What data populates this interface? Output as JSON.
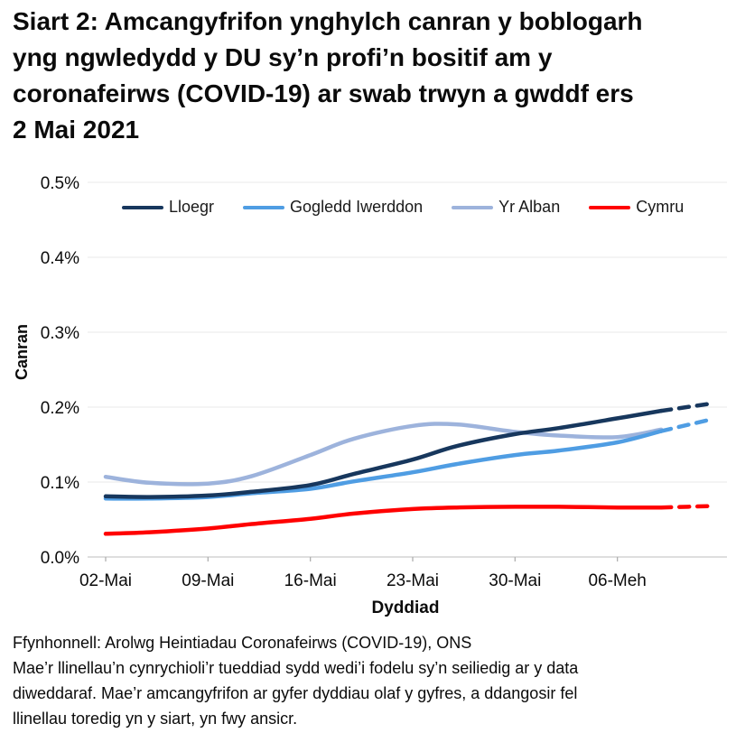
{
  "header": {
    "title_lines": [
      "Siart 2: Amcangyfrifon ynghylch canran y boblogarh",
      "yng ngwledydd y DU sy’n profi’n bositif am y",
      "coronafeirws (COVID-19) ar swab trwyn a gwddf ers",
      "2 Mai 2021"
    ]
  },
  "chart_data": {
    "type": "line",
    "xlabel": "Dyddiad",
    "ylabel": "Canran",
    "ylim": [
      0,
      0.5
    ],
    "grid": true,
    "legend_position": "top-inside",
    "y_tick_labels": [
      "0.0%",
      "0.1%",
      "0.2%",
      "0.3%",
      "0.4%",
      "0.5%"
    ],
    "y_tick_values": [
      0.0,
      0.1,
      0.2,
      0.3,
      0.4,
      0.5
    ],
    "x_tick_labels": [
      "02-Mai",
      "09-Mai",
      "16-Mai",
      "23-Mai",
      "30-Mai",
      "06-Meh"
    ],
    "x_tick_days": [
      0,
      7,
      14,
      21,
      28,
      35
    ],
    "x_dates": [
      "02-Mai",
      "05-Mai",
      "09-Mai",
      "12-Mai",
      "16-Mai",
      "19-Mai",
      "23-Mai",
      "26-Mai",
      "30-Mai",
      "02-Meh",
      "06-Meh",
      "09-Meh"
    ],
    "x_days": [
      0,
      3,
      7,
      10,
      14,
      17,
      21,
      24,
      28,
      31,
      35,
      38
    ],
    "draw_order": [
      2,
      1,
      0,
      3
    ],
    "series": [
      {
        "name": "Lloegr",
        "color": "#17375d",
        "values": [
          0.081,
          0.08,
          0.082,
          0.087,
          0.096,
          0.111,
          0.13,
          0.148,
          0.164,
          0.172,
          0.185,
          0.195
        ],
        "dashed_tail": {
          "days": [
            38,
            41.5
          ],
          "values": [
            0.195,
            0.205
          ]
        }
      },
      {
        "name": "Gogledd Iwerddon",
        "color": "#4f9de3",
        "values": [
          0.078,
          0.078,
          0.08,
          0.085,
          0.091,
          0.101,
          0.113,
          0.124,
          0.136,
          0.142,
          0.153,
          0.168
        ],
        "dashed_tail": {
          "days": [
            38,
            41.5
          ],
          "values": [
            0.168,
            0.184
          ]
        }
      },
      {
        "name": "Yr Alban",
        "color": "#9db3dc",
        "values": [
          0.107,
          0.099,
          0.098,
          0.108,
          0.136,
          0.158,
          0.175,
          0.177,
          0.167,
          0.162,
          0.16,
          0.17
        ],
        "dashed_tail": null
      },
      {
        "name": "Cymru",
        "color": "#ff0000",
        "values": [
          0.031,
          0.033,
          0.038,
          0.044,
          0.051,
          0.058,
          0.064,
          0.066,
          0.067,
          0.067,
          0.066,
          0.066
        ],
        "dashed_tail": {
          "days": [
            38,
            41.5
          ],
          "values": [
            0.066,
            0.068
          ]
        }
      }
    ]
  },
  "footer": {
    "source": "Ffynhonnell: Arolwg Heintiadau Coronafeirws (COVID-19), ONS",
    "note_lines": [
      "Mae’r llinellau’n cynrychioli’r tueddiad sydd wedi’i fodelu sy’n seiliedig ar y data",
      "diweddaraf. Mae’r amcangyfrifon ar gyfer dyddiau olaf y gyfres, a ddangosir fel",
      "llinellau toredig yn y siart, yn fwy ansicr."
    ]
  },
  "colors": {
    "gridline": "#e8e8e8",
    "axis_line": "#c9c9c9",
    "tick": "#b0b0b0",
    "text": "#0b0b0b"
  }
}
